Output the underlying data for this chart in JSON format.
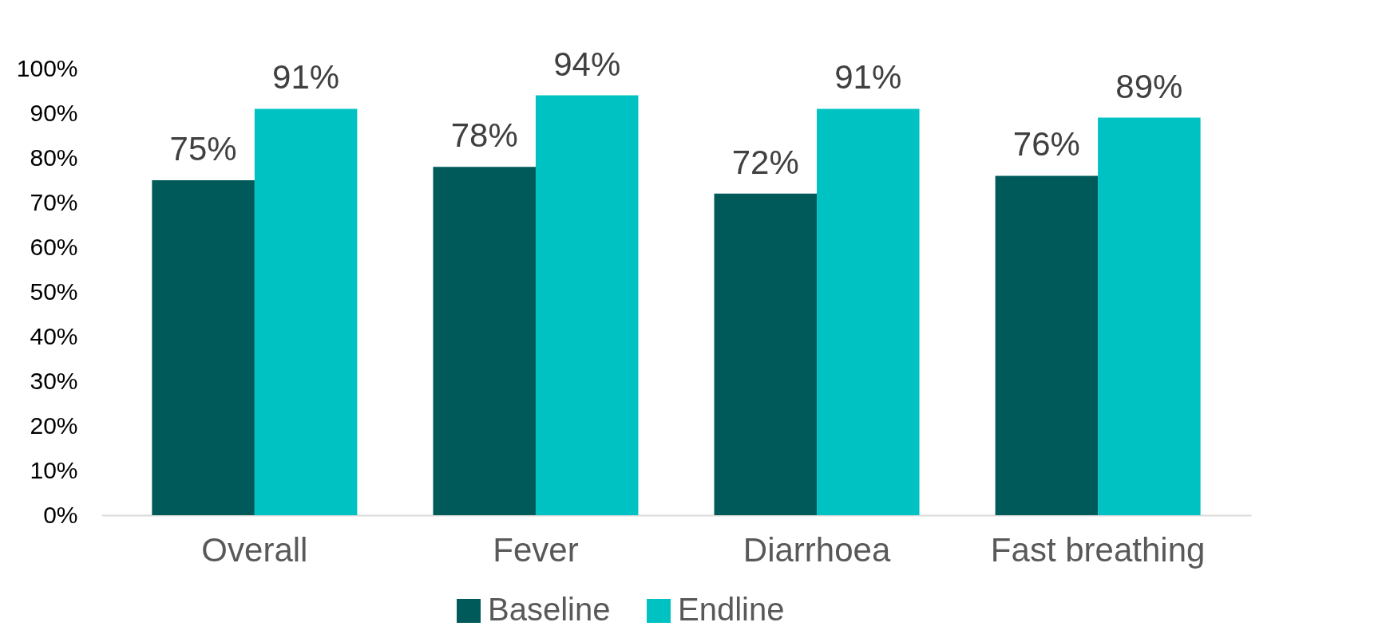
{
  "chart_data": {
    "type": "bar",
    "categories": [
      "Overall",
      "Fever",
      "Diarrhoea",
      "Fast breathing"
    ],
    "series": [
      {
        "name": "Baseline",
        "color": "#005a5a",
        "values": [
          75,
          78,
          72,
          76
        ],
        "value_labels": [
          "75%",
          "78%",
          "72%",
          "76%"
        ]
      },
      {
        "name": "Endline",
        "color": "#00c2c2",
        "values": [
          91,
          94,
          91,
          89
        ],
        "value_labels": [
          "91%",
          "94%",
          "91%",
          "89%"
        ]
      }
    ],
    "ylim": [
      0,
      100
    ],
    "yticks": [
      {
        "value": 0,
        "label": "0%"
      },
      {
        "value": 10,
        "label": "10%"
      },
      {
        "value": 20,
        "label": "20%"
      },
      {
        "value": 30,
        "label": "30%"
      },
      {
        "value": 40,
        "label": "40%"
      },
      {
        "value": 50,
        "label": "50%"
      },
      {
        "value": 60,
        "label": "60%"
      },
      {
        "value": 70,
        "label": "70%"
      },
      {
        "value": 80,
        "label": "80%"
      },
      {
        "value": 90,
        "label": "90%"
      },
      {
        "value": 100,
        "label": "100%"
      }
    ],
    "grid": false,
    "legend": "bottom"
  }
}
